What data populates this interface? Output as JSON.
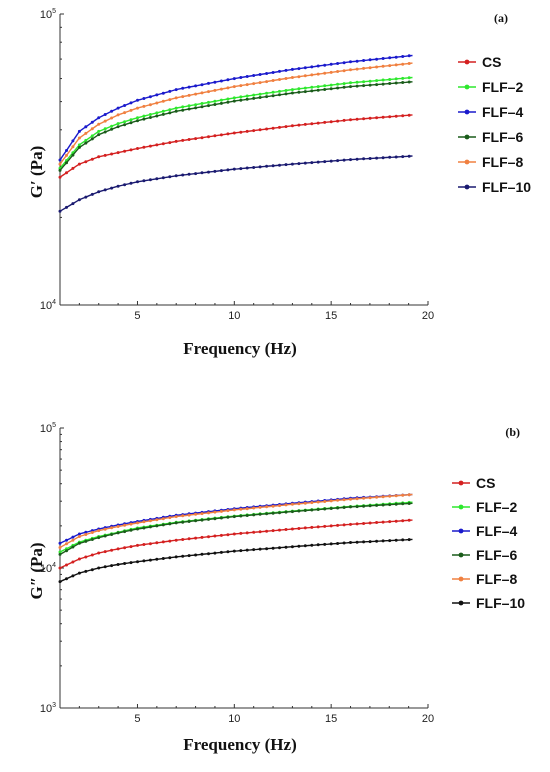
{
  "chart_data": [
    {
      "panel_label": "(a)",
      "type": "line",
      "ylabel": "G′ (Pa)",
      "xlabel": "Frequency (Hz)",
      "yscale": "log",
      "xlim": [
        1,
        20
      ],
      "ylim": [
        10000,
        100000
      ],
      "x_ticks": [
        5,
        10,
        15,
        20
      ],
      "y_ticks": [
        {
          "value": 10000,
          "base": "10",
          "exp": "4"
        },
        {
          "value": 100000,
          "base": "10",
          "exp": "5"
        }
      ],
      "grid": false,
      "legend_position": "right",
      "legend": [
        "CS",
        "FLF–2",
        "FLF–4",
        "FLF–6",
        "FLF–8",
        "FLF–10"
      ],
      "series": [
        {
          "name": "CS",
          "color": "#d42020",
          "points": [
            [
              1.0,
              27500
            ],
            [
              2,
              30500
            ],
            [
              3,
              32300
            ],
            [
              4,
              33400
            ],
            [
              5,
              34500
            ],
            [
              7,
              36500
            ],
            [
              10,
              39000
            ],
            [
              13,
              41300
            ],
            [
              16,
              43300
            ],
            [
              19.2,
              45000
            ]
          ]
        },
        {
          "name": "FLF–2",
          "color": "#2ee82e",
          "points": [
            [
              1.0,
              29500
            ],
            [
              2,
              35500
            ],
            [
              3,
              39500
            ],
            [
              4,
              42000
            ],
            [
              5,
              44000
            ],
            [
              7,
              47500
            ],
            [
              10,
              51500
            ],
            [
              13,
              55000
            ],
            [
              16,
              58000
            ],
            [
              19.2,
              60500
            ]
          ]
        },
        {
          "name": "FLF–4",
          "color": "#1a1acc",
          "points": [
            [
              1.0,
              31500
            ],
            [
              2,
              39500
            ],
            [
              3,
              44000
            ],
            [
              4,
              47500
            ],
            [
              5,
              50500
            ],
            [
              7,
              55000
            ],
            [
              10,
              60000
            ],
            [
              13,
              64500
            ],
            [
              16,
              68500
            ],
            [
              19.2,
              72000
            ]
          ]
        },
        {
          "name": "FLF–6",
          "color": "#1a5c1a",
          "points": [
            [
              1.0,
              29000
            ],
            [
              2,
              34800
            ],
            [
              3,
              38500
            ],
            [
              4,
              41000
            ],
            [
              5,
              43000
            ],
            [
              7,
              46300
            ],
            [
              10,
              50200
            ],
            [
              13,
              53500
            ],
            [
              16,
              56300
            ],
            [
              19.2,
              58500
            ]
          ]
        },
        {
          "name": "FLF–8",
          "color": "#f08040",
          "points": [
            [
              1.0,
              30500
            ],
            [
              2,
              37500
            ],
            [
              3,
              41800
            ],
            [
              4,
              45000
            ],
            [
              5,
              47500
            ],
            [
              7,
              51500
            ],
            [
              10,
              56300
            ],
            [
              13,
              60500
            ],
            [
              16,
              64300
            ],
            [
              19.2,
              67800
            ]
          ]
        },
        {
          "name": "FLF–10",
          "color": "#1a1a70",
          "points": [
            [
              1.0,
              21000
            ],
            [
              2,
              23000
            ],
            [
              3,
              24500
            ],
            [
              4,
              25600
            ],
            [
              5,
              26500
            ],
            [
              7,
              27800
            ],
            [
              10,
              29300
            ],
            [
              13,
              30500
            ],
            [
              16,
              31600
            ],
            [
              19.2,
              32500
            ]
          ]
        }
      ]
    },
    {
      "panel_label": "(b)",
      "type": "line",
      "ylabel": "G″ (Pa)",
      "xlabel": "Frequency (Hz)",
      "yscale": "log",
      "xlim": [
        1,
        20
      ],
      "ylim": [
        1000,
        100000
      ],
      "x_ticks": [
        5,
        10,
        15,
        20
      ],
      "y_ticks": [
        {
          "value": 1000,
          "base": "10",
          "exp": "3"
        },
        {
          "value": 10000,
          "base": "10",
          "exp": "4"
        },
        {
          "value": 100000,
          "base": "10",
          "exp": "5"
        }
      ],
      "grid": false,
      "legend_position": "right",
      "legend": [
        "CS",
        "FLF–2",
        "FLF–4",
        "FLF–6",
        "FLF–8",
        "FLF–10"
      ],
      "series": [
        {
          "name": "CS",
          "color": "#d42020",
          "points": [
            [
              1.0,
              10000
            ],
            [
              2,
              11600
            ],
            [
              3,
              12800
            ],
            [
              4,
              13700
            ],
            [
              5,
              14500
            ],
            [
              7,
              15800
            ],
            [
              10,
              17500
            ],
            [
              13,
              19000
            ],
            [
              16,
              20500
            ],
            [
              19.2,
              22000
            ]
          ]
        },
        {
          "name": "FLF–2",
          "color": "#2ee82e",
          "points": [
            [
              1.0,
              13000
            ],
            [
              2,
              15300
            ],
            [
              3,
              16800
            ],
            [
              4,
              18000
            ],
            [
              5,
              19300
            ],
            [
              7,
              21200
            ],
            [
              10,
              23500
            ],
            [
              13,
              25500
            ],
            [
              16,
              27500
            ],
            [
              19.2,
              29500
            ]
          ]
        },
        {
          "name": "FLF–4",
          "color": "#1a1acc",
          "points": [
            [
              1.0,
              15000
            ],
            [
              2,
              17500
            ],
            [
              3,
              19000
            ],
            [
              4,
              20300
            ],
            [
              5,
              21500
            ],
            [
              7,
              23800
            ],
            [
              10,
              26500
            ],
            [
              13,
              29000
            ],
            [
              16,
              31500
            ],
            [
              19.2,
              33500
            ]
          ]
        },
        {
          "name": "FLF–6",
          "color": "#1a5c1a",
          "points": [
            [
              1.0,
              12500
            ],
            [
              2,
              15000
            ],
            [
              3,
              16500
            ],
            [
              4,
              17800
            ],
            [
              5,
              19000
            ],
            [
              7,
              21000
            ],
            [
              10,
              23300
            ],
            [
              13,
              25300
            ],
            [
              16,
              27300
            ],
            [
              19.2,
              29000
            ]
          ]
        },
        {
          "name": "FLF–8",
          "color": "#f08040",
          "points": [
            [
              1.0,
              14000
            ],
            [
              2,
              16800
            ],
            [
              3,
              18500
            ],
            [
              4,
              19800
            ],
            [
              5,
              21000
            ],
            [
              7,
              23300
            ],
            [
              10,
              26000
            ],
            [
              13,
              28500
            ],
            [
              16,
              31000
            ],
            [
              19.2,
              33500
            ]
          ]
        },
        {
          "name": "FLF–10",
          "color": "#111111",
          "points": [
            [
              1.0,
              8000
            ],
            [
              2,
              9200
            ],
            [
              3,
              10000
            ],
            [
              4,
              10600
            ],
            [
              5,
              11100
            ],
            [
              7,
              12000
            ],
            [
              10,
              13200
            ],
            [
              13,
              14200
            ],
            [
              16,
              15200
            ],
            [
              19.2,
              16000
            ]
          ]
        }
      ]
    }
  ]
}
